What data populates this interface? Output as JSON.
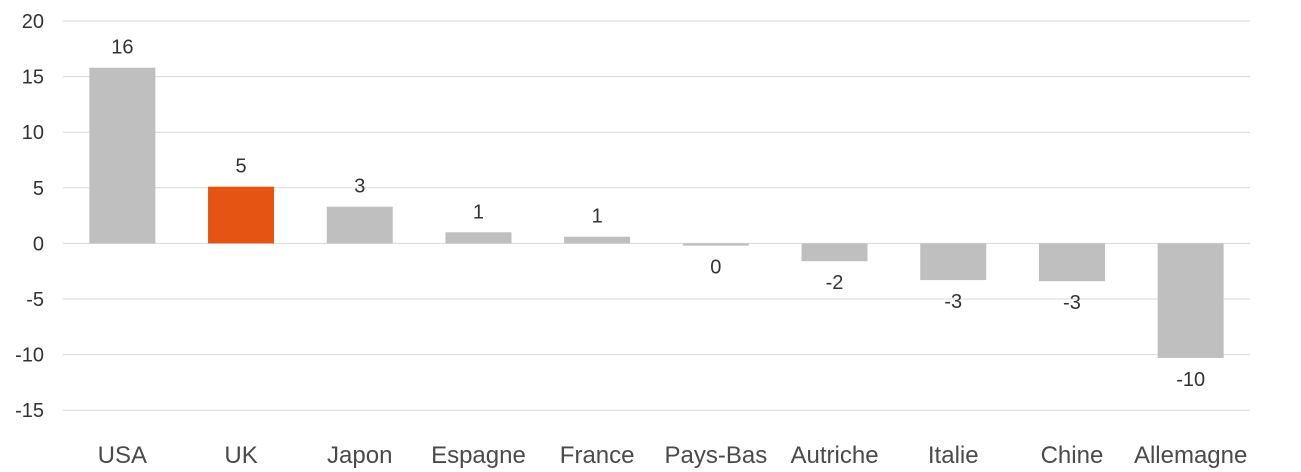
{
  "chart_data": {
    "type": "bar",
    "title": "",
    "xlabel": "",
    "ylabel": "",
    "categories": [
      "USA",
      "UK",
      "Japon",
      "Espagne",
      "France",
      "Pays-Bas",
      "Autriche",
      "Italie",
      "Chine",
      "Allemagne"
    ],
    "values": [
      15.8,
      5.1,
      3.3,
      1.0,
      0.6,
      -0.2,
      -1.6,
      -3.3,
      -3.4,
      -10.3
    ],
    "data_labels": [
      "16",
      "5",
      "3",
      "1",
      "1",
      "0",
      "-2",
      "-3",
      "-3",
      "-10"
    ],
    "ylim": [
      -15,
      20
    ],
    "yticks": [
      "20",
      "15",
      "10",
      "5",
      "0",
      "-5",
      "-10",
      "-15"
    ],
    "grid": true,
    "legend": "none",
    "colors": {
      "default_bar": "#bfbfbf",
      "highlight_bar": "#e65413",
      "grid": "#d9d9d9"
    },
    "highlight_index": 1
  }
}
